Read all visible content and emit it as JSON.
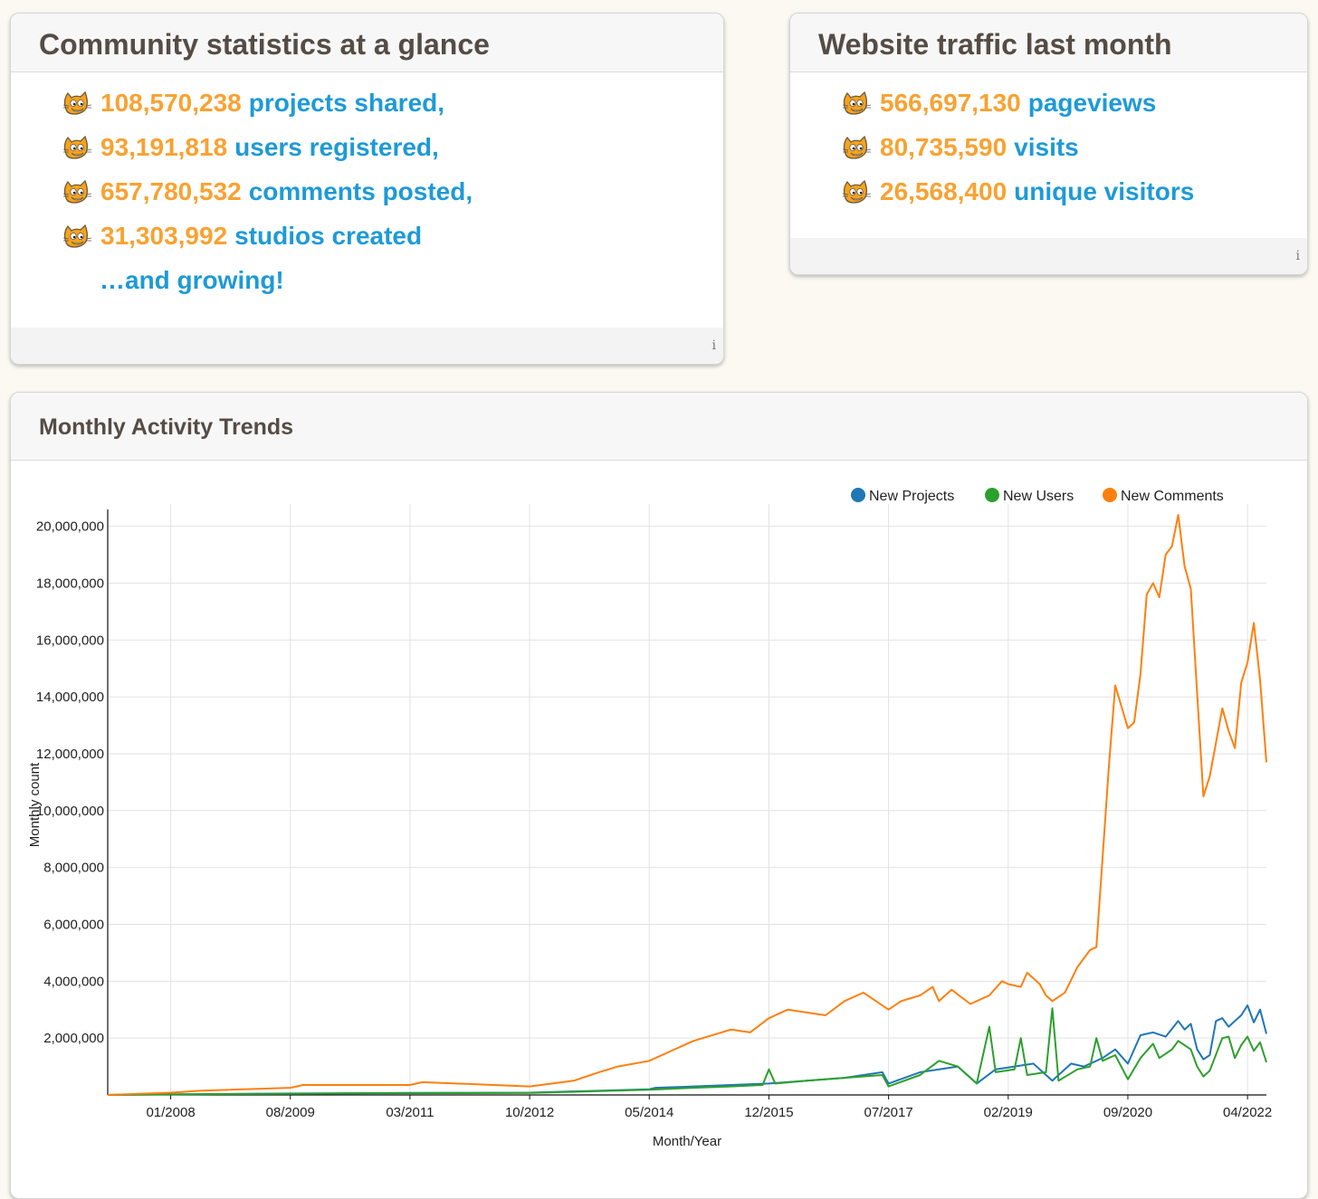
{
  "stats": {
    "title": "Community statistics at a glance",
    "items": [
      {
        "number": "108,570,238",
        "label": "projects shared,"
      },
      {
        "number": "93,191,818",
        "label": "users registered,"
      },
      {
        "number": "657,780,532",
        "label": "comments posted,"
      },
      {
        "number": "31,303,992",
        "label": "studios created"
      }
    ],
    "tagline": "…and growing!",
    "info_icon": "i"
  },
  "traffic": {
    "title": "Website traffic last month",
    "items": [
      {
        "number": "566,697,130",
        "label": "pageviews"
      },
      {
        "number": "80,735,590",
        "label": "visits"
      },
      {
        "number": "26,568,400",
        "label": "unique visitors"
      }
    ],
    "info_icon": "i"
  },
  "trends": {
    "title": "Monthly Activity Trends"
  },
  "icons": {
    "stat_bullet": "scratch-cat-icon",
    "info": "info-icon"
  },
  "colors": {
    "number": "#f8a232",
    "label": "#1e9ad6",
    "projects": "#1f77b4",
    "users": "#2ca02c",
    "comments": "#ff7f0e"
  },
  "chart_data": {
    "type": "line",
    "title": "",
    "xlabel": "Month/Year",
    "ylabel": "Monthly count",
    "x_ticks": [
      "01/2008",
      "08/2009",
      "03/2011",
      "10/2012",
      "05/2014",
      "12/2015",
      "07/2017",
      "02/2019",
      "09/2020",
      "04/2022"
    ],
    "y_ticks": [
      "2,000,000",
      "4,000,000",
      "6,000,000",
      "8,000,000",
      "10,000,000",
      "12,000,000",
      "14,000,000",
      "16,000,000",
      "18,000,000",
      "20,000,000"
    ],
    "ylim": [
      0,
      20400000
    ],
    "xlim": [
      "03/2007",
      "07/2022"
    ],
    "grid": true,
    "legend_position": "top-right",
    "series": [
      {
        "name": "New Projects",
        "color": "#1f77b4",
        "points": [
          [
            "03/2007",
            0
          ],
          [
            "01/2008",
            20000
          ],
          [
            "08/2009",
            50000
          ],
          [
            "03/2011",
            70000
          ],
          [
            "10/2012",
            80000
          ],
          [
            "05/2014",
            200000
          ],
          [
            "06/2014",
            250000
          ],
          [
            "12/2014",
            300000
          ],
          [
            "06/2015",
            350000
          ],
          [
            "12/2015",
            400000
          ],
          [
            "06/2016",
            500000
          ],
          [
            "12/2016",
            600000
          ],
          [
            "03/2017",
            700000
          ],
          [
            "06/2017",
            800000
          ],
          [
            "07/2017",
            400000
          ],
          [
            "12/2017",
            800000
          ],
          [
            "06/2018",
            1000000
          ],
          [
            "09/2018",
            400000
          ],
          [
            "12/2018",
            900000
          ],
          [
            "03/2019",
            1000000
          ],
          [
            "06/2019",
            1100000
          ],
          [
            "09/2019",
            500000
          ],
          [
            "12/2019",
            1100000
          ],
          [
            "02/2020",
            1000000
          ],
          [
            "05/2020",
            1300000
          ],
          [
            "07/2020",
            1600000
          ],
          [
            "09/2020",
            1100000
          ],
          [
            "11/2020",
            2100000
          ],
          [
            "01/2021",
            2200000
          ],
          [
            "03/2021",
            2050000
          ],
          [
            "05/2021",
            2600000
          ],
          [
            "06/2021",
            2300000
          ],
          [
            "07/2021",
            2500000
          ],
          [
            "08/2021",
            1600000
          ],
          [
            "09/2021",
            1250000
          ],
          [
            "10/2021",
            1400000
          ],
          [
            "11/2021",
            2600000
          ],
          [
            "12/2021",
            2700000
          ],
          [
            "01/2022",
            2400000
          ],
          [
            "02/2022",
            2600000
          ],
          [
            "03/2022",
            2800000
          ],
          [
            "04/2022",
            3150000
          ],
          [
            "05/2022",
            2550000
          ],
          [
            "06/2022",
            3000000
          ],
          [
            "07/2022",
            2150000
          ]
        ]
      },
      {
        "name": "New Users",
        "color": "#2ca02c",
        "points": [
          [
            "03/2007",
            0
          ],
          [
            "01/2008",
            20000
          ],
          [
            "08/2009",
            40000
          ],
          [
            "03/2011",
            60000
          ],
          [
            "10/2012",
            70000
          ],
          [
            "05/2014",
            180000
          ],
          [
            "12/2014",
            250000
          ],
          [
            "06/2015",
            300000
          ],
          [
            "11/2015",
            350000
          ],
          [
            "12/2015",
            900000
          ],
          [
            "01/2016",
            400000
          ],
          [
            "06/2016",
            500000
          ],
          [
            "12/2016",
            600000
          ],
          [
            "06/2017",
            700000
          ],
          [
            "07/2017",
            300000
          ],
          [
            "12/2017",
            700000
          ],
          [
            "03/2018",
            1200000
          ],
          [
            "06/2018",
            1000000
          ],
          [
            "09/2018",
            400000
          ],
          [
            "11/2018",
            2400000
          ],
          [
            "12/2018",
            800000
          ],
          [
            "03/2019",
            900000
          ],
          [
            "04/2019",
            2000000
          ],
          [
            "05/2019",
            700000
          ],
          [
            "08/2019",
            800000
          ],
          [
            "09/2019",
            3050000
          ],
          [
            "10/2019",
            500000
          ],
          [
            "01/2020",
            900000
          ],
          [
            "03/2020",
            1000000
          ],
          [
            "04/2020",
            2000000
          ],
          [
            "05/2020",
            1200000
          ],
          [
            "07/2020",
            1400000
          ],
          [
            "09/2020",
            550000
          ],
          [
            "11/2020",
            1300000
          ],
          [
            "01/2021",
            1800000
          ],
          [
            "02/2021",
            1300000
          ],
          [
            "04/2021",
            1600000
          ],
          [
            "05/2021",
            1900000
          ],
          [
            "07/2021",
            1600000
          ],
          [
            "08/2021",
            1000000
          ],
          [
            "09/2021",
            650000
          ],
          [
            "10/2021",
            850000
          ],
          [
            "12/2021",
            2000000
          ],
          [
            "01/2022",
            2050000
          ],
          [
            "02/2022",
            1300000
          ],
          [
            "03/2022",
            1750000
          ],
          [
            "04/2022",
            2050000
          ],
          [
            "05/2022",
            1550000
          ],
          [
            "06/2022",
            1850000
          ],
          [
            "07/2022",
            1150000
          ]
        ]
      },
      {
        "name": "New Comments",
        "color": "#ff7f0e",
        "points": [
          [
            "03/2007",
            0
          ],
          [
            "01/2008",
            80000
          ],
          [
            "06/2008",
            150000
          ],
          [
            "08/2009",
            250000
          ],
          [
            "10/2009",
            350000
          ],
          [
            "03/2011",
            350000
          ],
          [
            "05/2011",
            450000
          ],
          [
            "10/2012",
            300000
          ],
          [
            "05/2013",
            500000
          ],
          [
            "09/2013",
            800000
          ],
          [
            "12/2013",
            1000000
          ],
          [
            "05/2014",
            1200000
          ],
          [
            "08/2014",
            1500000
          ],
          [
            "12/2014",
            1900000
          ],
          [
            "06/2015",
            2300000
          ],
          [
            "09/2015",
            2200000
          ],
          [
            "12/2015",
            2700000
          ],
          [
            "03/2016",
            3000000
          ],
          [
            "06/2016",
            2900000
          ],
          [
            "09/2016",
            2800000
          ],
          [
            "12/2016",
            3300000
          ],
          [
            "03/2017",
            3600000
          ],
          [
            "05/2017",
            3300000
          ],
          [
            "07/2017",
            3000000
          ],
          [
            "09/2017",
            3300000
          ],
          [
            "12/2017",
            3500000
          ],
          [
            "02/2018",
            3800000
          ],
          [
            "03/2018",
            3300000
          ],
          [
            "05/2018",
            3700000
          ],
          [
            "08/2018",
            3200000
          ],
          [
            "11/2018",
            3500000
          ],
          [
            "01/2019",
            4000000
          ],
          [
            "02/2019",
            3900000
          ],
          [
            "04/2019",
            3800000
          ],
          [
            "05/2019",
            4300000
          ],
          [
            "07/2019",
            3900000
          ],
          [
            "08/2019",
            3500000
          ],
          [
            "09/2019",
            3300000
          ],
          [
            "11/2019",
            3600000
          ],
          [
            "01/2020",
            4500000
          ],
          [
            "03/2020",
            5100000
          ],
          [
            "04/2020",
            5200000
          ],
          [
            "06/2020",
            11600000
          ],
          [
            "07/2020",
            14400000
          ],
          [
            "09/2020",
            12900000
          ],
          [
            "10/2020",
            13100000
          ],
          [
            "11/2020",
            14800000
          ],
          [
            "12/2020",
            17600000
          ],
          [
            "01/2021",
            18000000
          ],
          [
            "02/2021",
            17500000
          ],
          [
            "03/2021",
            19000000
          ],
          [
            "04/2021",
            19300000
          ],
          [
            "05/2021",
            20400000
          ],
          [
            "06/2021",
            18600000
          ],
          [
            "07/2021",
            17800000
          ],
          [
            "09/2021",
            10500000
          ],
          [
            "10/2021",
            11200000
          ],
          [
            "12/2021",
            13600000
          ],
          [
            "01/2022",
            12800000
          ],
          [
            "02/2022",
            12200000
          ],
          [
            "03/2022",
            14500000
          ],
          [
            "04/2022",
            15200000
          ],
          [
            "05/2022",
            16600000
          ],
          [
            "06/2022",
            14600000
          ],
          [
            "07/2022",
            11700000
          ]
        ]
      }
    ]
  }
}
